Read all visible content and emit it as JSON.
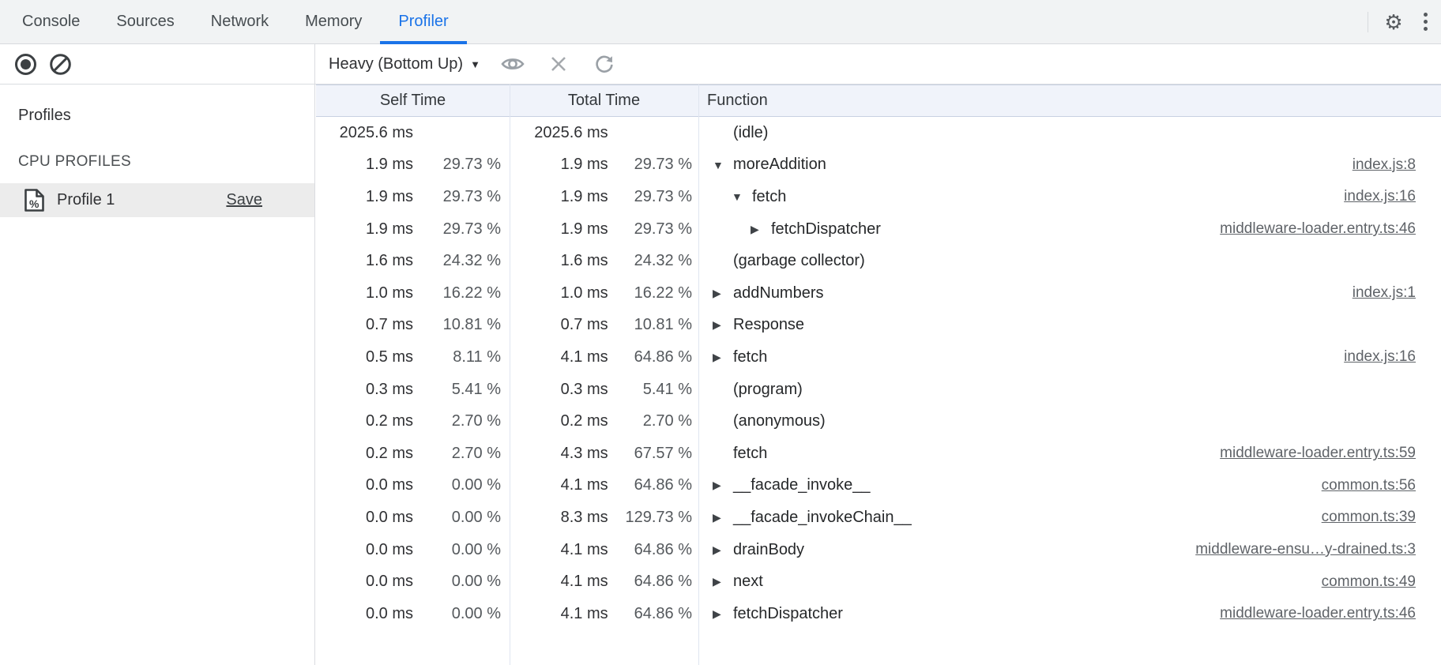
{
  "tabbar": {
    "tabs": [
      {
        "label": "Console",
        "active": false
      },
      {
        "label": "Sources",
        "active": false
      },
      {
        "label": "Network",
        "active": false
      },
      {
        "label": "Memory",
        "active": false
      },
      {
        "label": "Profiler",
        "active": true
      }
    ]
  },
  "toolbar": {
    "dropdown_label": "Heavy (Bottom Up)",
    "dropdown_caret": "▼"
  },
  "sidebar": {
    "heading": "Profiles",
    "section_title": "CPU PROFILES",
    "profile": {
      "name": "Profile 1",
      "action_label": "Save",
      "icon": "percent-document-icon"
    }
  },
  "table": {
    "columns": [
      "Self Time",
      "Total Time",
      "Function"
    ],
    "rows": [
      {
        "self": "2025.6 ms",
        "self_pct": "",
        "total": "2025.6 ms",
        "total_pct": "",
        "depth": 0,
        "arrow": "",
        "fn": "(idle)",
        "link": ""
      },
      {
        "self": "1.9 ms",
        "self_pct": "29.73 %",
        "total": "1.9 ms",
        "total_pct": "29.73 %",
        "depth": 0,
        "arrow": "down",
        "fn": "moreAddition",
        "link": "index.js:8"
      },
      {
        "self": "1.9 ms",
        "self_pct": "29.73 %",
        "total": "1.9 ms",
        "total_pct": "29.73 %",
        "depth": 1,
        "arrow": "down",
        "fn": "fetch",
        "link": "index.js:16"
      },
      {
        "self": "1.9 ms",
        "self_pct": "29.73 %",
        "total": "1.9 ms",
        "total_pct": "29.73 %",
        "depth": 2,
        "arrow": "right",
        "fn": "fetchDispatcher",
        "link": "middleware-loader.entry.ts:46"
      },
      {
        "self": "1.6 ms",
        "self_pct": "24.32 %",
        "total": "1.6 ms",
        "total_pct": "24.32 %",
        "depth": 0,
        "arrow": "",
        "fn": "(garbage collector)",
        "link": ""
      },
      {
        "self": "1.0 ms",
        "self_pct": "16.22 %",
        "total": "1.0 ms",
        "total_pct": "16.22 %",
        "depth": 0,
        "arrow": "right",
        "fn": "addNumbers",
        "link": "index.js:1"
      },
      {
        "self": "0.7 ms",
        "self_pct": "10.81 %",
        "total": "0.7 ms",
        "total_pct": "10.81 %",
        "depth": 0,
        "arrow": "right",
        "fn": "Response",
        "link": ""
      },
      {
        "self": "0.5 ms",
        "self_pct": "8.11 %",
        "total": "4.1 ms",
        "total_pct": "64.86 %",
        "depth": 0,
        "arrow": "right",
        "fn": "fetch",
        "link": "index.js:16"
      },
      {
        "self": "0.3 ms",
        "self_pct": "5.41 %",
        "total": "0.3 ms",
        "total_pct": "5.41 %",
        "depth": 0,
        "arrow": "",
        "fn": "(program)",
        "link": ""
      },
      {
        "self": "0.2 ms",
        "self_pct": "2.70 %",
        "total": "0.2 ms",
        "total_pct": "2.70 %",
        "depth": 0,
        "arrow": "",
        "fn": "(anonymous)",
        "link": ""
      },
      {
        "self": "0.2 ms",
        "self_pct": "2.70 %",
        "total": "4.3 ms",
        "total_pct": "67.57 %",
        "depth": 0,
        "arrow": "",
        "fn": "fetch",
        "link": "middleware-loader.entry.ts:59"
      },
      {
        "self": "0.0 ms",
        "self_pct": "0.00 %",
        "total": "4.1 ms",
        "total_pct": "64.86 %",
        "depth": 0,
        "arrow": "right",
        "fn": "__facade_invoke__",
        "link": "common.ts:56"
      },
      {
        "self": "0.0 ms",
        "self_pct": "0.00 %",
        "total": "8.3 ms",
        "total_pct": "129.73 %",
        "depth": 0,
        "arrow": "right",
        "fn": "__facade_invokeChain__",
        "link": "common.ts:39"
      },
      {
        "self": "0.0 ms",
        "self_pct": "0.00 %",
        "total": "4.1 ms",
        "total_pct": "64.86 %",
        "depth": 0,
        "arrow": "right",
        "fn": "drainBody",
        "link": "middleware-ensu…y-drained.ts:3"
      },
      {
        "self": "0.0 ms",
        "self_pct": "0.00 %",
        "total": "4.1 ms",
        "total_pct": "64.86 %",
        "depth": 0,
        "arrow": "right",
        "fn": "next",
        "link": "common.ts:49"
      },
      {
        "self": "0.0 ms",
        "self_pct": "0.00 %",
        "total": "4.1 ms",
        "total_pct": "64.86 %",
        "depth": 0,
        "arrow": "right",
        "fn": "fetchDispatcher",
        "link": "middleware-loader.entry.ts:46"
      }
    ]
  },
  "colors": {
    "accent_blue": "#1a73e8",
    "tabbar_bg": "#f1f3f4",
    "header_bg": "#f0f3fa",
    "selected_row_bg": "#ececec",
    "link_gray": "#5f6368"
  }
}
